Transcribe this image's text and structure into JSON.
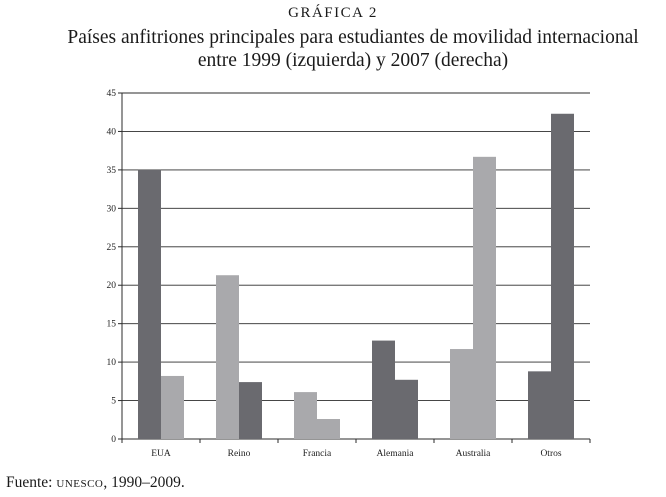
{
  "figure": {
    "label": "GRÁFICA 2",
    "title_line1": "Países anfitriones principales para estudiantes de movilidad internacional",
    "title_line2": "entre 1999 (izquierda) y 2007 (derecha)"
  },
  "source": {
    "prefix": "Fuente:",
    "org": "unesco",
    "years": ", 1990–2009."
  },
  "chart_data": {
    "type": "bar",
    "title": "Países anfitriones principales para estudiantes de movilidad internacional entre 1999 (izquierda) y 2007 (derecha)",
    "xlabel": "",
    "ylabel": "",
    "ylim": [
      0,
      45
    ],
    "yticks": [
      0,
      5,
      10,
      15,
      20,
      25,
      30,
      35,
      40,
      45
    ],
    "grid": true,
    "categories": [
      "EUA",
      "Reino",
      "Francia",
      "Alemania",
      "Australia",
      "Otros"
    ],
    "series": [
      {
        "name": "1999",
        "values": [
          35.0,
          21.3,
          6.1,
          12.8,
          11.7,
          8.8
        ],
        "colors": [
          "#6a6a6f",
          "#a9a9ac",
          "#a9a9ac",
          "#6a6a6f",
          "#a9a9ac",
          "#6a6a6f"
        ]
      },
      {
        "name": "2007",
        "values": [
          8.2,
          7.4,
          2.6,
          7.7,
          36.7,
          42.3
        ],
        "colors": [
          "#a9a9ac",
          "#6a6a6f",
          "#a9a9ac",
          "#6a6a6f",
          "#a9a9ac",
          "#6a6a6f"
        ]
      }
    ]
  }
}
